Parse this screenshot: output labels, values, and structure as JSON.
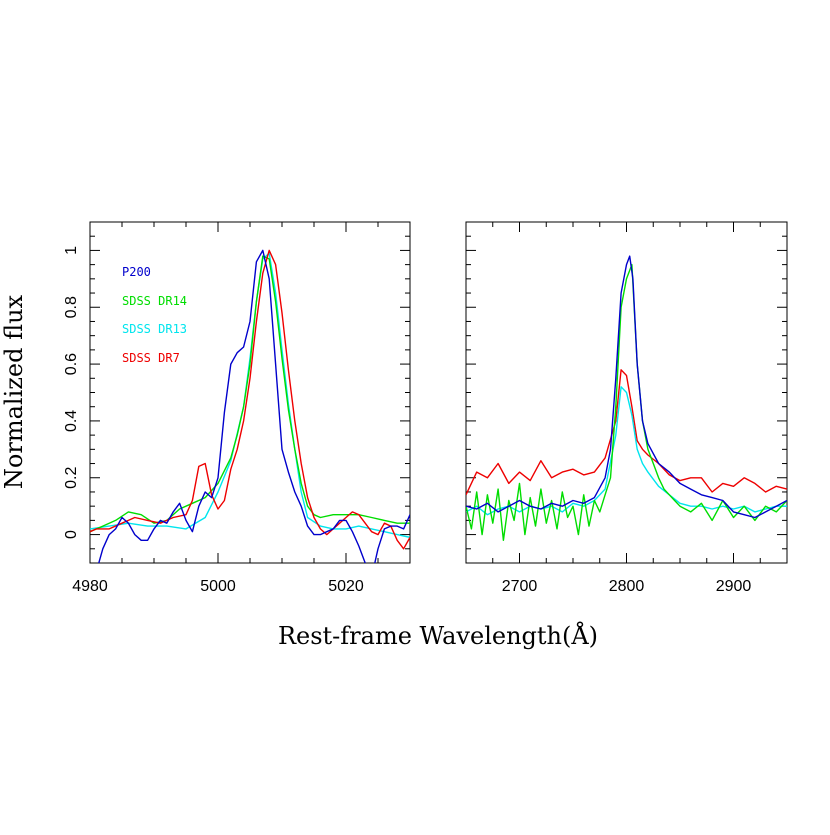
{
  "figure": {
    "ylabel": "Normalized flux",
    "xlabel": "Rest-frame Wavelength(Å)"
  },
  "legend": [
    {
      "label": "P200",
      "color": "#0000cc"
    },
    {
      "label": "SDSS DR14",
      "color": "#00dd00"
    },
    {
      "label": "SDSS DR13",
      "color": "#00e5ee"
    },
    {
      "label": "SDSS DR7",
      "color": "#ee0000"
    }
  ],
  "chart_data": [
    {
      "type": "line",
      "xlim": [
        4980,
        5030
      ],
      "ylim": [
        -0.1,
        1.1
      ],
      "xticks": [
        4980,
        5000,
        5020
      ],
      "yticks": [
        0,
        0.2,
        0.4,
        0.6,
        0.8,
        1
      ],
      "show_ytick_labels": true,
      "series": [
        {
          "name": "SDSS DR13",
          "color": "#00e5ee",
          "x": [
            4980,
            4983,
            4986,
            4989,
            4992,
            4995,
            4998,
            5000,
            5002,
            5004,
            5005,
            5006,
            5007,
            5008,
            5009,
            5010,
            5011,
            5012,
            5013,
            5014,
            5016,
            5018,
            5020,
            5022,
            5024,
            5026,
            5028,
            5030
          ],
          "y": [
            0.02,
            0.03,
            0.04,
            0.03,
            0.03,
            0.02,
            0.06,
            0.15,
            0.26,
            0.45,
            0.62,
            0.82,
            0.97,
            0.99,
            0.85,
            0.65,
            0.46,
            0.3,
            0.15,
            0.06,
            0.03,
            0.02,
            0.02,
            0.03,
            0.02,
            0.01,
            0.0,
            -0.01
          ]
        },
        {
          "name": "SDSS DR14",
          "color": "#00dd00",
          "x": [
            4980,
            4982,
            4984,
            4986,
            4988,
            4990,
            4992,
            4994,
            4996,
            4998,
            5000,
            5002,
            5003,
            5004,
            5005,
            5006,
            5007,
            5008,
            5009,
            5010,
            5011,
            5012,
            5013,
            5014,
            5015,
            5016,
            5018,
            5020,
            5022,
            5024,
            5026,
            5028,
            5030
          ],
          "y": [
            0.01,
            0.03,
            0.05,
            0.08,
            0.07,
            0.04,
            0.05,
            0.09,
            0.11,
            0.13,
            0.18,
            0.27,
            0.35,
            0.45,
            0.6,
            0.82,
            0.98,
            0.97,
            0.82,
            0.62,
            0.44,
            0.3,
            0.18,
            0.1,
            0.07,
            0.06,
            0.07,
            0.07,
            0.07,
            0.06,
            0.05,
            0.04,
            0.04
          ]
        },
        {
          "name": "SDSS DR7",
          "color": "#ee0000",
          "x": [
            4980,
            4981,
            4983,
            4985,
            4987,
            4989,
            4991,
            4993,
            4995,
            4996,
            4997,
            4998,
            4999,
            5000,
            5001,
            5002,
            5003,
            5004,
            5005,
            5006,
            5007,
            5008,
            5009,
            5010,
            5011,
            5012,
            5013,
            5014,
            5015,
            5016,
            5017,
            5018,
            5019,
            5020,
            5021,
            5022,
            5023,
            5024,
            5025,
            5026,
            5027,
            5028,
            5029,
            5030
          ],
          "y": [
            0.01,
            0.02,
            0.02,
            0.04,
            0.06,
            0.05,
            0.04,
            0.06,
            0.07,
            0.12,
            0.24,
            0.25,
            0.14,
            0.09,
            0.12,
            0.23,
            0.3,
            0.4,
            0.55,
            0.75,
            0.92,
            1.0,
            0.95,
            0.78,
            0.58,
            0.4,
            0.25,
            0.13,
            0.06,
            0.02,
            0.0,
            0.02,
            0.04,
            0.06,
            0.08,
            0.07,
            0.04,
            0.01,
            0.0,
            0.04,
            0.03,
            -0.02,
            -0.05,
            -0.01
          ]
        },
        {
          "name": "P200",
          "color": "#0000cc",
          "x": [
            4980,
            4981,
            4982,
            4983,
            4984,
            4985,
            4986,
            4987,
            4988,
            4989,
            4990,
            4991,
            4992,
            4993,
            4994,
            4995,
            4996,
            4997,
            4998,
            4999,
            5000,
            5001,
            5002,
            5003,
            5004,
            5005,
            5006,
            5007,
            5008,
            5009,
            5010,
            5011,
            5012,
            5013,
            5014,
            5015,
            5016,
            5017,
            5018,
            5019,
            5020,
            5021,
            5022,
            5023,
            5024,
            5025,
            5026,
            5027,
            5028,
            5029,
            5030
          ],
          "y": [
            -0.12,
            -0.13,
            -0.05,
            0.0,
            0.02,
            0.06,
            0.04,
            0.0,
            -0.02,
            -0.02,
            0.02,
            0.05,
            0.04,
            0.08,
            0.11,
            0.05,
            0.01,
            0.1,
            0.15,
            0.13,
            0.2,
            0.43,
            0.6,
            0.64,
            0.66,
            0.75,
            0.96,
            1.0,
            0.9,
            0.6,
            0.3,
            0.22,
            0.15,
            0.1,
            0.03,
            0.0,
            0.0,
            0.01,
            0.02,
            0.05,
            0.05,
            0.01,
            -0.04,
            -0.1,
            -0.15,
            -0.05,
            0.02,
            0.03,
            0.03,
            0.02,
            0.07
          ]
        }
      ]
    },
    {
      "type": "line",
      "xlim": [
        2650,
        2950
      ],
      "ylim": [
        -0.1,
        1.1
      ],
      "xticks": [
        2700,
        2800,
        2900
      ],
      "yticks": [
        0,
        0.2,
        0.4,
        0.6,
        0.8,
        1
      ],
      "show_ytick_labels": false,
      "series": [
        {
          "name": "SDSS DR7",
          "color": "#ee0000",
          "x": [
            2650,
            2660,
            2670,
            2680,
            2690,
            2700,
            2710,
            2720,
            2730,
            2740,
            2750,
            2760,
            2770,
            2780,
            2790,
            2795,
            2800,
            2805,
            2810,
            2815,
            2820,
            2830,
            2840,
            2850,
            2860,
            2870,
            2880,
            2890,
            2900,
            2910,
            2920,
            2930,
            2940,
            2950
          ],
          "y": [
            0.14,
            0.22,
            0.2,
            0.25,
            0.18,
            0.22,
            0.19,
            0.26,
            0.2,
            0.22,
            0.23,
            0.21,
            0.22,
            0.27,
            0.4,
            0.58,
            0.56,
            0.45,
            0.33,
            0.3,
            0.28,
            0.25,
            0.21,
            0.19,
            0.2,
            0.2,
            0.15,
            0.18,
            0.17,
            0.2,
            0.18,
            0.15,
            0.17,
            0.16
          ]
        },
        {
          "name": "SDSS DR13",
          "color": "#00e5ee",
          "x": [
            2650,
            2660,
            2670,
            2680,
            2690,
            2700,
            2710,
            2720,
            2730,
            2740,
            2750,
            2760,
            2770,
            2780,
            2790,
            2795,
            2800,
            2805,
            2810,
            2815,
            2820,
            2830,
            2840,
            2850,
            2860,
            2870,
            2880,
            2890,
            2900,
            2910,
            2920,
            2930,
            2940,
            2950
          ],
          "y": [
            0.08,
            0.1,
            0.07,
            0.09,
            0.1,
            0.08,
            0.1,
            0.09,
            0.1,
            0.08,
            0.11,
            0.1,
            0.12,
            0.16,
            0.35,
            0.52,
            0.5,
            0.42,
            0.3,
            0.25,
            0.22,
            0.17,
            0.14,
            0.11,
            0.1,
            0.1,
            0.09,
            0.1,
            0.09,
            0.1,
            0.08,
            0.09,
            0.1,
            0.1
          ]
        },
        {
          "name": "SDSS DR14",
          "color": "#00dd00",
          "x": [
            2650,
            2655,
            2660,
            2665,
            2670,
            2675,
            2680,
            2685,
            2690,
            2695,
            2700,
            2705,
            2710,
            2715,
            2720,
            2725,
            2730,
            2735,
            2740,
            2745,
            2750,
            2755,
            2760,
            2765,
            2770,
            2775,
            2780,
            2785,
            2790,
            2795,
            2800,
            2805,
            2810,
            2815,
            2820,
            2825,
            2830,
            2835,
            2840,
            2845,
            2850,
            2860,
            2870,
            2880,
            2890,
            2900,
            2910,
            2920,
            2930,
            2940,
            2950
          ],
          "y": [
            0.1,
            0.02,
            0.15,
            0.0,
            0.14,
            0.04,
            0.16,
            -0.02,
            0.12,
            0.05,
            0.18,
            0.0,
            0.13,
            0.03,
            0.16,
            0.04,
            0.12,
            0.02,
            0.15,
            0.06,
            0.1,
            0.0,
            0.14,
            0.03,
            0.12,
            0.08,
            0.14,
            0.2,
            0.45,
            0.8,
            0.9,
            0.95,
            0.6,
            0.4,
            0.3,
            0.25,
            0.2,
            0.16,
            0.14,
            0.12,
            0.1,
            0.08,
            0.11,
            0.05,
            0.12,
            0.06,
            0.1,
            0.05,
            0.1,
            0.08,
            0.12
          ]
        },
        {
          "name": "P200",
          "color": "#0000cc",
          "x": [
            2650,
            2660,
            2670,
            2680,
            2690,
            2700,
            2710,
            2720,
            2730,
            2740,
            2750,
            2760,
            2770,
            2780,
            2785,
            2790,
            2795,
            2800,
            2803,
            2806,
            2810,
            2815,
            2820,
            2830,
            2840,
            2850,
            2860,
            2870,
            2880,
            2890,
            2900,
            2910,
            2920,
            2930,
            2940,
            2950
          ],
          "y": [
            0.1,
            0.09,
            0.11,
            0.08,
            0.1,
            0.12,
            0.1,
            0.09,
            0.11,
            0.1,
            0.12,
            0.11,
            0.13,
            0.2,
            0.3,
            0.55,
            0.85,
            0.95,
            0.98,
            0.9,
            0.6,
            0.4,
            0.32,
            0.25,
            0.22,
            0.18,
            0.16,
            0.14,
            0.13,
            0.12,
            0.08,
            0.07,
            0.06,
            0.08,
            0.1,
            0.12
          ]
        }
      ]
    }
  ]
}
